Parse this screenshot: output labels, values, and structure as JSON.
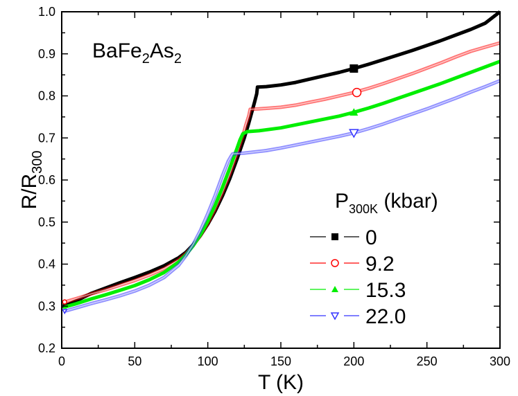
{
  "chart_data": {
    "type": "scatter",
    "title": "",
    "annotation": {
      "text": "BaFe",
      "sub1": "2",
      "mid": "As",
      "sub2": "2"
    },
    "xlabel": "T (K)",
    "ylabel": {
      "main": "R/R",
      "sub": "300"
    },
    "xlim": [
      0,
      300
    ],
    "ylim": [
      0.2,
      1.0
    ],
    "xticks": [
      0,
      50,
      100,
      150,
      200,
      250,
      300
    ],
    "xtick_labels": [
      "0",
      "50",
      "100",
      "150",
      "200",
      "250",
      "300"
    ],
    "yticks": [
      0.2,
      0.3,
      0.4,
      0.5,
      0.6,
      0.7,
      0.8,
      0.9,
      1.0
    ],
    "ytick_labels": [
      "0.2",
      "0.3",
      "0.4",
      "0.5",
      "0.6",
      "0.7",
      "0.8",
      "0.9",
      "1.0"
    ],
    "grid": false,
    "legend": {
      "title": {
        "main": "P",
        "sub": "300K",
        "rest": " (kbar)"
      },
      "position": "lower right",
      "entries": [
        "0",
        "9.2",
        "15.3",
        "22.0"
      ]
    },
    "series": [
      {
        "name": "0",
        "color": "#000000",
        "marker": "filled-square",
        "highlight_point": [
          200,
          0.865
        ],
        "x": [
          2,
          10,
          20,
          30,
          40,
          50,
          60,
          70,
          80,
          85,
          90,
          95,
          100,
          105,
          110,
          115,
          120,
          125,
          128,
          130,
          132,
          133.5,
          134,
          140,
          150,
          160,
          170,
          180,
          190,
          200,
          210,
          220,
          230,
          240,
          250,
          260,
          270,
          280,
          290,
          300
        ],
        "y": [
          0.3,
          0.313,
          0.33,
          0.343,
          0.356,
          0.368,
          0.381,
          0.396,
          0.415,
          0.428,
          0.446,
          0.468,
          0.495,
          0.526,
          0.562,
          0.603,
          0.65,
          0.7,
          0.735,
          0.76,
          0.785,
          0.805,
          0.821,
          0.822,
          0.826,
          0.832,
          0.84,
          0.848,
          0.856,
          0.865,
          0.875,
          0.886,
          0.897,
          0.908,
          0.92,
          0.932,
          0.945,
          0.958,
          0.973,
          1.0
        ]
      },
      {
        "name": "9.2",
        "color": "#ff0000",
        "marker": "open-circle",
        "highlight_point": [
          202,
          0.808
        ],
        "x": [
          2,
          10,
          20,
          30,
          40,
          50,
          60,
          70,
          80,
          85,
          90,
          95,
          100,
          105,
          110,
          115,
          120,
          124,
          126,
          128,
          129,
          135,
          150,
          160,
          170,
          180,
          190,
          200,
          210,
          220,
          230,
          240,
          250,
          260,
          270,
          280,
          290,
          300
        ],
        "y": [
          0.31,
          0.318,
          0.329,
          0.339,
          0.35,
          0.361,
          0.374,
          0.389,
          0.41,
          0.425,
          0.444,
          0.468,
          0.497,
          0.531,
          0.57,
          0.614,
          0.663,
          0.705,
          0.73,
          0.752,
          0.768,
          0.769,
          0.773,
          0.778,
          0.785,
          0.792,
          0.8,
          0.808,
          0.818,
          0.829,
          0.841,
          0.853,
          0.866,
          0.879,
          0.893,
          0.906,
          0.916,
          0.926
        ]
      },
      {
        "name": "15.3",
        "color": "#00ee00",
        "marker": "filled-triangle-up",
        "highlight_point": [
          200,
          0.761
        ],
        "x": [
          2,
          10,
          20,
          30,
          40,
          50,
          60,
          70,
          80,
          85,
          90,
          95,
          100,
          105,
          110,
          115,
          120,
          122,
          124,
          127,
          135,
          150,
          160,
          170,
          180,
          190,
          200,
          210,
          220,
          230,
          240,
          250,
          260,
          270,
          280,
          290,
          300
        ],
        "y": [
          0.298,
          0.306,
          0.317,
          0.327,
          0.338,
          0.349,
          0.363,
          0.38,
          0.405,
          0.422,
          0.444,
          0.47,
          0.502,
          0.54,
          0.582,
          0.628,
          0.675,
          0.695,
          0.71,
          0.715,
          0.717,
          0.724,
          0.731,
          0.738,
          0.745,
          0.752,
          0.761,
          0.771,
          0.782,
          0.794,
          0.806,
          0.818,
          0.83,
          0.843,
          0.856,
          0.869,
          0.882
        ]
      },
      {
        "name": "22.0",
        "color": "#3333ff",
        "marker": "open-triangle-down",
        "highlight_point": [
          200,
          0.712
        ],
        "x": [
          2,
          10,
          20,
          30,
          40,
          50,
          60,
          70,
          80,
          85,
          90,
          95,
          100,
          105,
          110,
          114,
          116,
          117,
          125,
          140,
          150,
          160,
          170,
          180,
          190,
          200,
          210,
          220,
          230,
          240,
          250,
          260,
          270,
          280,
          290,
          300
        ],
        "y": [
          0.288,
          0.296,
          0.306,
          0.315,
          0.325,
          0.336,
          0.35,
          0.368,
          0.397,
          0.42,
          0.447,
          0.48,
          0.52,
          0.563,
          0.61,
          0.645,
          0.657,
          0.662,
          0.664,
          0.67,
          0.676,
          0.683,
          0.69,
          0.697,
          0.704,
          0.712,
          0.722,
          0.733,
          0.745,
          0.757,
          0.769,
          0.782,
          0.795,
          0.809,
          0.822,
          0.836
        ]
      }
    ]
  }
}
